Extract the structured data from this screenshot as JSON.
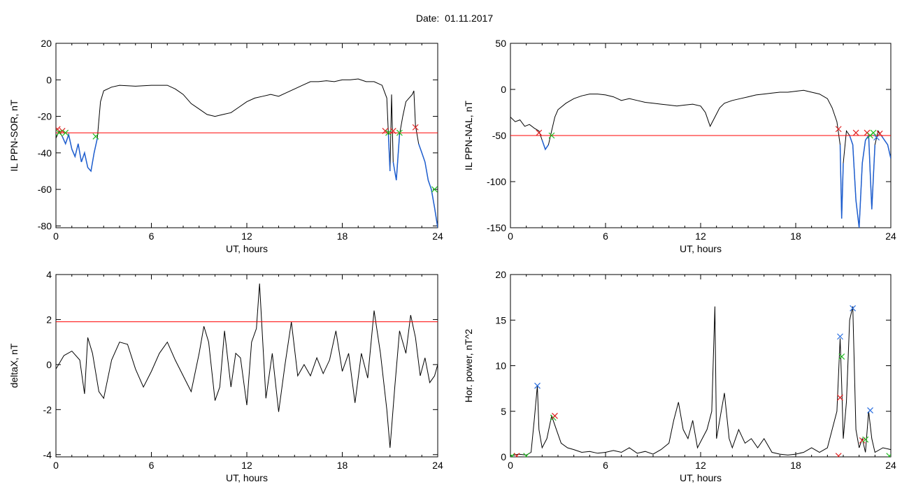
{
  "title": "Date:  01.11.2017",
  "colors": {
    "trace": "#000000",
    "threshold": "#ff0000",
    "highlight": "#1f5fd0",
    "marker_red": "#e02020",
    "marker_green": "#22bb22",
    "marker_blue": "#2a6fe0"
  },
  "chart_data": [
    {
      "type": "line",
      "title": "",
      "xlabel": "UT, hours",
      "ylabel": "IL PPN-SOR, nT",
      "xlim": [
        0,
        24
      ],
      "ylim": [
        -81,
        20
      ],
      "xticks": [
        0,
        6,
        12,
        18,
        24
      ],
      "yticks": [
        20,
        0,
        -20,
        -40,
        -60,
        -80
      ],
      "xticklabels": [
        "0",
        "6",
        "12",
        "18",
        "24"
      ],
      "yticklabels": [
        "20",
        "0",
        "-20",
        "-40",
        "-60",
        "-80"
      ],
      "threshold": -29,
      "series": [
        {
          "x": [
            0,
            0.2,
            0.4,
            0.6,
            0.8,
            1.0,
            1.2,
            1.4,
            1.6,
            1.8,
            2.0,
            2.2,
            2.4,
            2.6,
            2.8,
            3.0,
            3.5,
            4,
            5,
            6,
            6.5,
            7,
            7.5,
            8,
            8.5,
            9,
            9.5,
            10,
            10.5,
            11,
            11.5,
            12,
            12.5,
            13,
            13.5,
            14,
            14.5,
            15,
            15.5,
            16,
            16.5,
            17,
            17.5,
            18,
            18.5,
            19,
            19.5,
            20,
            20.5,
            20.8,
            20.9,
            21.0,
            21.1,
            21.2,
            21.4,
            21.6,
            21.8,
            22.0,
            22.2,
            22.4,
            22.5,
            22.6,
            22.8,
            23.0,
            23.2,
            23.4,
            23.6,
            23.8,
            24
          ],
          "y": [
            -32,
            -28,
            -31,
            -35,
            -30,
            -38,
            -42,
            -35,
            -45,
            -40,
            -48,
            -50,
            -40,
            -32,
            -12,
            -6,
            -4,
            -3,
            -3.5,
            -3,
            -3,
            -3,
            -5,
            -8,
            -13,
            -16,
            -19,
            -20,
            -19,
            -18,
            -15,
            -12,
            -10,
            -9,
            -8,
            -9,
            -7,
            -5,
            -3,
            -1,
            -1,
            -0.5,
            -1,
            0,
            0,
            0.5,
            -1,
            -1,
            -3,
            -10,
            -30,
            -50,
            -8,
            -45,
            -55,
            -30,
            -20,
            -12,
            -10,
            -8,
            -6,
            -25,
            -35,
            -40,
            -45,
            -55,
            -60,
            -70,
            -81
          ]
        }
      ],
      "markers": [
        {
          "x": 0.1,
          "y": -27,
          "color": "red"
        },
        {
          "x": 0.4,
          "y": -28,
          "color": "red"
        },
        {
          "x": 0.2,
          "y": -29,
          "color": "green"
        },
        {
          "x": 0.6,
          "y": -29,
          "color": "green"
        },
        {
          "x": 2.5,
          "y": -31,
          "color": "green"
        },
        {
          "x": 20.7,
          "y": -28,
          "color": "red"
        },
        {
          "x": 21.2,
          "y": -28,
          "color": "red"
        },
        {
          "x": 20.9,
          "y": -29,
          "color": "green"
        },
        {
          "x": 21.6,
          "y": -29,
          "color": "green"
        },
        {
          "x": 22.6,
          "y": -26,
          "color": "red"
        },
        {
          "x": 23.8,
          "y": -60,
          "color": "green"
        }
      ]
    },
    {
      "type": "line",
      "title": "",
      "xlabel": "UT, hours",
      "ylabel": "IL PPN-NAL, nT",
      "xlim": [
        0,
        24
      ],
      "ylim": [
        -150,
        50
      ],
      "xticks": [
        0,
        6,
        12,
        18,
        24
      ],
      "yticks": [
        50,
        0,
        -50,
        -100,
        -150
      ],
      "xticklabels": [
        "0",
        "6",
        "12",
        "18",
        "24"
      ],
      "yticklabels": [
        "50",
        "0",
        "-50",
        "-100",
        "-150"
      ],
      "threshold": -50,
      "series": [
        {
          "x": [
            0,
            0.3,
            0.6,
            0.9,
            1.2,
            1.5,
            1.8,
            2.0,
            2.2,
            2.4,
            2.6,
            2.8,
            3.0,
            3.5,
            4,
            4.5,
            5,
            5.5,
            6,
            6.5,
            7,
            7.5,
            8,
            8.5,
            9,
            9.5,
            10,
            10.5,
            11,
            11.5,
            12,
            12.3,
            12.6,
            12.9,
            13.2,
            13.5,
            14,
            14.5,
            15,
            15.5,
            16,
            16.5,
            17,
            17.5,
            18,
            18.5,
            19,
            19.5,
            20,
            20.3,
            20.6,
            20.8,
            20.9,
            21.0,
            21.2,
            21.4,
            21.6,
            21.8,
            22.0,
            22.2,
            22.4,
            22.6,
            22.7,
            22.8,
            23.0,
            23.2,
            23.4,
            23.6,
            23.8,
            24
          ],
          "y": [
            -30,
            -35,
            -33,
            -40,
            -38,
            -42,
            -45,
            -55,
            -65,
            -60,
            -45,
            -30,
            -22,
            -15,
            -10,
            -7,
            -5,
            -5,
            -6,
            -8,
            -12,
            -10,
            -12,
            -14,
            -15,
            -16,
            -17,
            -18,
            -17,
            -16,
            -18,
            -25,
            -40,
            -30,
            -20,
            -15,
            -12,
            -10,
            -8,
            -6,
            -5,
            -4,
            -3,
            -3,
            -2,
            -1,
            -3,
            -5,
            -10,
            -20,
            -35,
            -60,
            -140,
            -80,
            -45,
            -50,
            -60,
            -120,
            -150,
            -80,
            -55,
            -50,
            -90,
            -130,
            -60,
            -45,
            -50,
            -55,
            -60,
            -75
          ]
        }
      ],
      "markers": [
        {
          "x": 1.8,
          "y": -47,
          "color": "red"
        },
        {
          "x": 2.6,
          "y": -50,
          "color": "green"
        },
        {
          "x": 20.7,
          "y": -43,
          "color": "red"
        },
        {
          "x": 21.8,
          "y": -47,
          "color": "red"
        },
        {
          "x": 22.5,
          "y": -47,
          "color": "red"
        },
        {
          "x": 22.7,
          "y": -50,
          "color": "green"
        },
        {
          "x": 22.9,
          "y": -47,
          "color": "green"
        },
        {
          "x": 23.1,
          "y": -52,
          "color": "blue"
        },
        {
          "x": 23.3,
          "y": -48,
          "color": "red"
        }
      ]
    },
    {
      "type": "line",
      "title": "",
      "xlabel": "UT, hours",
      "ylabel": "deltaX, nT",
      "xlim": [
        0,
        24
      ],
      "ylim": [
        -4.1,
        4
      ],
      "xticks": [
        0,
        6,
        12,
        18,
        24
      ],
      "yticks": [
        4,
        2,
        0,
        -2,
        -4
      ],
      "xticklabels": [
        "0",
        "6",
        "12",
        "18",
        "24"
      ],
      "yticklabels": [
        "4",
        "2",
        "0",
        "-2",
        "-4"
      ],
      "threshold": 1.9,
      "series": [
        {
          "x": [
            0,
            0.5,
            1.0,
            1.5,
            1.8,
            2.0,
            2.3,
            2.7,
            3.0,
            3.5,
            4,
            4.5,
            5,
            5.5,
            6,
            6.5,
            7,
            7.5,
            8,
            8.5,
            9,
            9.3,
            9.6,
            10,
            10.3,
            10.6,
            11,
            11.3,
            11.6,
            12,
            12.3,
            12.6,
            12.8,
            13.0,
            13.2,
            13.6,
            14,
            14.4,
            14.8,
            15.2,
            15.6,
            16,
            16.4,
            16.8,
            17.2,
            17.6,
            18,
            18.4,
            18.8,
            19.2,
            19.6,
            20,
            20.4,
            20.8,
            21.0,
            21.3,
            21.6,
            21.8,
            22.0,
            22.3,
            22.6,
            22.9,
            23.2,
            23.5,
            23.8,
            24
          ],
          "y": [
            -0.2,
            0.4,
            0.6,
            0.2,
            -1.3,
            1.2,
            0.5,
            -1.2,
            -1.5,
            0.2,
            1.0,
            0.9,
            -0.2,
            -1.0,
            -0.3,
            0.5,
            1.0,
            0.2,
            -0.5,
            -1.2,
            0.5,
            1.7,
            1.0,
            -1.6,
            -1.0,
            1.5,
            -1.0,
            0.5,
            0.3,
            -1.8,
            1.0,
            1.6,
            3.6,
            1.0,
            -1.5,
            0.5,
            -2.1,
            0.0,
            1.9,
            -0.5,
            0.0,
            -0.5,
            0.3,
            -0.4,
            0.2,
            1.5,
            -0.3,
            0.5,
            -1.7,
            0.5,
            -0.6,
            2.4,
            0.5,
            -2.0,
            -3.7,
            -1.0,
            1.5,
            1.0,
            0.5,
            2.2,
            1.2,
            -0.5,
            0.3,
            -0.8,
            -0.5,
            0.0
          ]
        }
      ],
      "markers": []
    },
    {
      "type": "line",
      "title": "",
      "xlabel": "UT, hours",
      "ylabel": "Hor. power, nT^2",
      "xlim": [
        0,
        24
      ],
      "ylim": [
        0,
        20
      ],
      "xticks": [
        0,
        6,
        12,
        18,
        24
      ],
      "yticks": [
        20,
        15,
        10,
        5,
        0
      ],
      "xticklabels": [
        "0",
        "6",
        "12",
        "18",
        "24"
      ],
      "yticklabels": [
        "20",
        "15",
        "10",
        "5",
        "0"
      ],
      "threshold": null,
      "series": [
        {
          "x": [
            0,
            0.5,
            1.0,
            1.3,
            1.5,
            1.7,
            1.8,
            2.0,
            2.3,
            2.6,
            2.9,
            3.2,
            3.6,
            4,
            4.5,
            5,
            5.5,
            6,
            6.5,
            7,
            7.5,
            8,
            8.5,
            9,
            9.5,
            10,
            10.3,
            10.6,
            10.9,
            11.2,
            11.5,
            11.8,
            12.1,
            12.4,
            12.7,
            12.9,
            13.0,
            13.2,
            13.5,
            13.8,
            14,
            14.4,
            14.8,
            15.2,
            15.6,
            16,
            16.5,
            17,
            17.5,
            18,
            18.5,
            19,
            19.5,
            20,
            20.3,
            20.6,
            20.8,
            20.9,
            21.0,
            21.2,
            21.4,
            21.6,
            21.8,
            22.0,
            22.2,
            22.4,
            22.6,
            22.8,
            23.0,
            23.5,
            24
          ],
          "y": [
            0.1,
            0.3,
            0.2,
            0.5,
            4,
            7.8,
            3,
            1,
            2,
            4.5,
            3,
            1.5,
            1,
            0.8,
            0.5,
            0.6,
            0.4,
            0.5,
            0.7,
            0.5,
            1,
            0.4,
            0.6,
            0.3,
            0.8,
            1.5,
            4,
            6,
            3,
            2,
            4,
            1,
            2,
            3,
            5,
            16.5,
            2,
            4,
            7,
            2,
            1,
            3,
            1.5,
            2,
            1,
            2,
            0.5,
            0.3,
            0.2,
            0.3,
            0.5,
            1,
            0.5,
            1,
            3,
            5,
            13,
            8,
            2,
            6,
            15,
            16.5,
            3,
            1,
            2,
            0.5,
            5,
            2,
            0.5,
            1,
            0.8
          ]
        }
      ],
      "markers": [
        {
          "x": 1.7,
          "y": 7.8,
          "color": "blue"
        },
        {
          "x": 2.7,
          "y": 4.3,
          "color": "green"
        },
        {
          "x": 2.8,
          "y": 4.5,
          "color": "red"
        },
        {
          "x": 0.1,
          "y": 0.1,
          "color": "green"
        },
        {
          "x": 0.4,
          "y": 0.1,
          "color": "red"
        },
        {
          "x": 1.0,
          "y": 0.1,
          "color": "green"
        },
        {
          "x": 20.8,
          "y": 13.2,
          "color": "blue"
        },
        {
          "x": 20.9,
          "y": 11.0,
          "color": "green"
        },
        {
          "x": 20.8,
          "y": 6.5,
          "color": "red"
        },
        {
          "x": 20.7,
          "y": 0.1,
          "color": "red"
        },
        {
          "x": 21.6,
          "y": 16.3,
          "color": "blue"
        },
        {
          "x": 22.2,
          "y": 1.8,
          "color": "red"
        },
        {
          "x": 22.4,
          "y": 1.9,
          "color": "green"
        },
        {
          "x": 22.7,
          "y": 5.1,
          "color": "blue"
        },
        {
          "x": 23.9,
          "y": 0.1,
          "color": "green"
        }
      ]
    }
  ]
}
